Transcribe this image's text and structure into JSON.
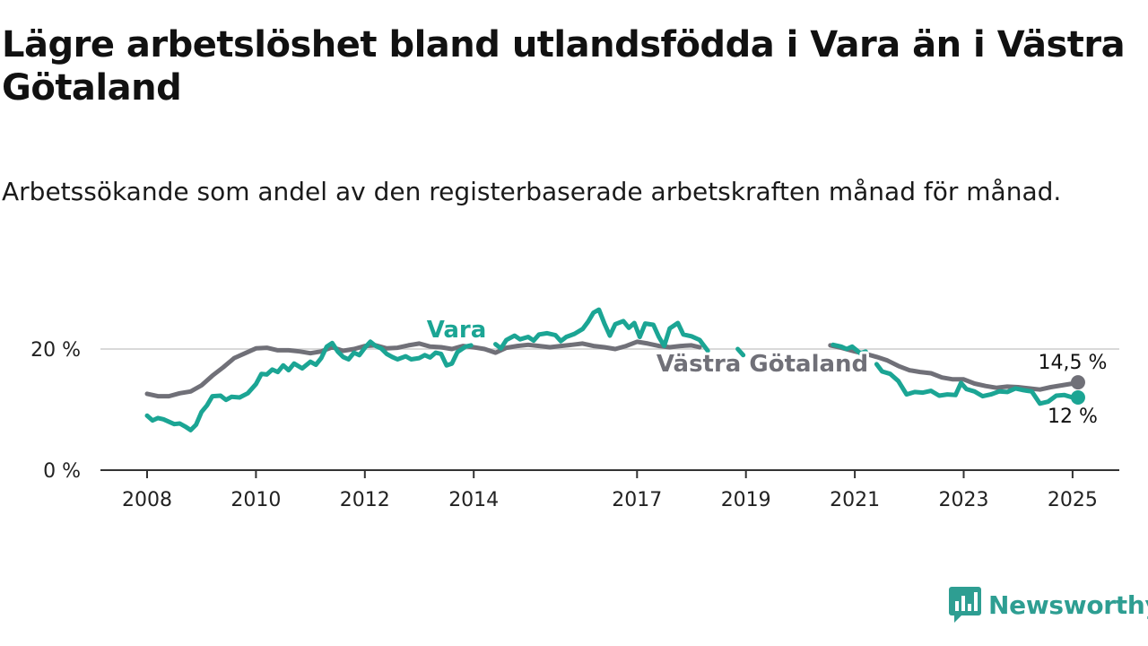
{
  "chart_data": {
    "type": "line",
    "title": "Lägre arbetslöshet bland utlandsfödda i Vara än i Västra Götaland",
    "subtitle": "Arbetssökande som andel av den registerbaserade arbetskraften månad för månad.",
    "ylim": [
      0,
      27
    ],
    "y_ticks": [
      {
        "value": 0,
        "label": "0 %"
      },
      {
        "value": 20,
        "label": "20 %"
      }
    ],
    "x_ticks": [
      {
        "value": 2008.0,
        "label": "2008"
      },
      {
        "value": 2010.0,
        "label": "2010"
      },
      {
        "value": 2012.0,
        "label": "2012"
      },
      {
        "value": 2014.0,
        "label": "2014"
      },
      {
        "value": 2017.0,
        "label": "2017"
      },
      {
        "value": 2019.0,
        "label": "2019"
      },
      {
        "value": 2021.0,
        "label": "2021"
      },
      {
        "value": 2023.0,
        "label": "2023"
      },
      {
        "value": 2025.0,
        "label": "2025"
      }
    ],
    "xlim": [
      2007.2,
      2026.0
    ],
    "grid": "horizontal at 20 %",
    "series": [
      {
        "name": "Vara",
        "color": "#1ba594",
        "end_label": "12 %",
        "points": [
          [
            2008.0,
            9.0
          ],
          [
            2008.1,
            8.2
          ],
          [
            2008.2,
            8.6
          ],
          [
            2008.3,
            8.4
          ],
          [
            2008.5,
            7.6
          ],
          [
            2008.6,
            7.7
          ],
          [
            2008.7,
            7.2
          ],
          [
            2008.8,
            6.6
          ],
          [
            2008.9,
            7.5
          ],
          [
            2009.0,
            9.6
          ],
          [
            2009.1,
            10.7
          ],
          [
            2009.2,
            12.2
          ],
          [
            2009.35,
            12.3
          ],
          [
            2009.45,
            11.6
          ],
          [
            2009.55,
            12.1
          ],
          [
            2009.7,
            12.0
          ],
          [
            2009.85,
            12.7
          ],
          [
            2010.0,
            14.2
          ],
          [
            2010.1,
            15.9
          ],
          [
            2010.2,
            15.8
          ],
          [
            2010.3,
            16.6
          ],
          [
            2010.4,
            16.2
          ],
          [
            2010.5,
            17.3
          ],
          [
            2010.6,
            16.5
          ],
          [
            2010.7,
            17.6
          ],
          [
            2010.85,
            16.8
          ],
          [
            2011.0,
            17.9
          ],
          [
            2011.1,
            17.4
          ],
          [
            2011.2,
            18.5
          ],
          [
            2011.3,
            20.4
          ],
          [
            2011.4,
            21.0
          ],
          [
            2011.5,
            19.6
          ],
          [
            2011.6,
            18.7
          ],
          [
            2011.7,
            18.3
          ],
          [
            2011.8,
            19.4
          ],
          [
            2011.9,
            19.0
          ],
          [
            2012.0,
            20.2
          ],
          [
            2012.1,
            21.2
          ],
          [
            2012.2,
            20.5
          ],
          [
            2012.3,
            20.1
          ],
          [
            2012.4,
            19.2
          ],
          [
            2012.5,
            18.7
          ],
          [
            2012.6,
            18.3
          ],
          [
            2012.75,
            18.8
          ],
          [
            2012.85,
            18.3
          ],
          [
            2013.0,
            18.5
          ],
          [
            2013.1,
            19.0
          ],
          [
            2013.2,
            18.6
          ],
          [
            2013.3,
            19.4
          ],
          [
            2013.4,
            19.2
          ],
          [
            2013.5,
            17.3
          ],
          [
            2013.6,
            17.6
          ],
          [
            2013.7,
            19.5
          ],
          [
            2013.85,
            20.4
          ],
          [
            2013.95,
            20.6
          ]
        ],
        "points_b": [
          [
            2014.4,
            20.8
          ],
          [
            2014.5,
            20.1
          ],
          [
            2014.6,
            21.5
          ],
          [
            2014.75,
            22.2
          ],
          [
            2014.85,
            21.6
          ],
          [
            2015.0,
            22.0
          ],
          [
            2015.1,
            21.4
          ],
          [
            2015.2,
            22.4
          ],
          [
            2015.35,
            22.6
          ],
          [
            2015.5,
            22.3
          ],
          [
            2015.6,
            21.3
          ],
          [
            2015.7,
            22.0
          ],
          [
            2015.85,
            22.5
          ],
          [
            2016.0,
            23.3
          ],
          [
            2016.1,
            24.5
          ],
          [
            2016.2,
            26.0
          ],
          [
            2016.3,
            26.5
          ],
          [
            2016.4,
            24.2
          ],
          [
            2016.5,
            22.2
          ],
          [
            2016.6,
            24.1
          ],
          [
            2016.75,
            24.6
          ],
          [
            2016.85,
            23.5
          ],
          [
            2016.95,
            24.3
          ],
          [
            2017.05,
            22.0
          ],
          [
            2017.15,
            24.2
          ],
          [
            2017.3,
            24.0
          ],
          [
            2017.4,
            22.0
          ],
          [
            2017.5,
            20.5
          ],
          [
            2017.6,
            23.4
          ],
          [
            2017.75,
            24.3
          ],
          [
            2017.85,
            22.4
          ],
          [
            2018.0,
            22.1
          ],
          [
            2018.15,
            21.5
          ],
          [
            2018.3,
            19.7
          ]
        ],
        "points_c": [
          [
            2018.85,
            20.0
          ],
          [
            2018.95,
            19.0
          ]
        ],
        "points_d": [
          [
            2020.6,
            20.7
          ],
          [
            2020.75,
            20.4
          ],
          [
            2020.85,
            20.0
          ],
          [
            2020.95,
            20.4
          ],
          [
            2021.1,
            19.3
          ],
          [
            2021.2,
            19.6
          ]
        ],
        "points_e": [
          [
            2021.4,
            17.5
          ],
          [
            2021.5,
            16.3
          ],
          [
            2021.65,
            15.9
          ],
          [
            2021.8,
            14.7
          ],
          [
            2021.95,
            12.5
          ],
          [
            2022.1,
            12.9
          ],
          [
            2022.25,
            12.8
          ],
          [
            2022.4,
            13.1
          ],
          [
            2022.55,
            12.3
          ],
          [
            2022.7,
            12.5
          ],
          [
            2022.85,
            12.4
          ],
          [
            2022.95,
            14.4
          ],
          [
            2023.05,
            13.4
          ],
          [
            2023.2,
            13.0
          ],
          [
            2023.35,
            12.2
          ],
          [
            2023.5,
            12.5
          ],
          [
            2023.65,
            13.0
          ],
          [
            2023.8,
            12.9
          ],
          [
            2023.95,
            13.5
          ],
          [
            2024.1,
            13.2
          ],
          [
            2024.25,
            13.0
          ],
          [
            2024.4,
            11.0
          ],
          [
            2024.55,
            11.3
          ],
          [
            2024.7,
            12.3
          ],
          [
            2024.85,
            12.4
          ],
          [
            2025.0,
            12.0
          ],
          [
            2025.1,
            12.0
          ]
        ]
      },
      {
        "name": "Västra Götaland",
        "color": "#707078",
        "end_label": "14,5 %",
        "points": [
          [
            2008.0,
            12.6
          ],
          [
            2008.2,
            12.2
          ],
          [
            2008.4,
            12.2
          ],
          [
            2008.6,
            12.7
          ],
          [
            2008.8,
            13.0
          ],
          [
            2009.0,
            14.0
          ],
          [
            2009.2,
            15.6
          ],
          [
            2009.4,
            17.0
          ],
          [
            2009.6,
            18.5
          ],
          [
            2009.8,
            19.3
          ],
          [
            2010.0,
            20.1
          ],
          [
            2010.2,
            20.2
          ],
          [
            2010.4,
            19.8
          ],
          [
            2010.6,
            19.8
          ],
          [
            2010.8,
            19.6
          ],
          [
            2011.0,
            19.3
          ],
          [
            2011.2,
            19.6
          ],
          [
            2011.4,
            20.3
          ],
          [
            2011.6,
            19.7
          ],
          [
            2011.8,
            20.0
          ],
          [
            2012.0,
            20.5
          ],
          [
            2012.2,
            20.6
          ],
          [
            2012.4,
            20.1
          ],
          [
            2012.6,
            20.2
          ],
          [
            2012.8,
            20.6
          ],
          [
            2013.0,
            20.9
          ],
          [
            2013.2,
            20.4
          ],
          [
            2013.4,
            20.3
          ],
          [
            2013.6,
            20.0
          ],
          [
            2013.8,
            20.5
          ],
          [
            2014.0,
            20.3
          ],
          [
            2014.2,
            20.0
          ],
          [
            2014.4,
            19.4
          ],
          [
            2014.6,
            20.2
          ],
          [
            2014.8,
            20.5
          ],
          [
            2015.0,
            20.7
          ],
          [
            2015.2,
            20.5
          ],
          [
            2015.4,
            20.3
          ],
          [
            2015.6,
            20.5
          ],
          [
            2015.8,
            20.7
          ],
          [
            2016.0,
            20.9
          ],
          [
            2016.2,
            20.5
          ],
          [
            2016.4,
            20.3
          ],
          [
            2016.6,
            20.0
          ],
          [
            2016.8,
            20.5
          ],
          [
            2017.0,
            21.2
          ],
          [
            2017.2,
            20.9
          ],
          [
            2017.4,
            20.5
          ],
          [
            2017.6,
            20.3
          ],
          [
            2017.8,
            20.5
          ],
          [
            2018.0,
            20.6
          ],
          [
            2018.15,
            20.3
          ]
        ],
        "points_b": [
          [
            2020.55,
            20.6
          ],
          [
            2020.75,
            20.2
          ],
          [
            2021.0,
            19.6
          ],
          [
            2021.2,
            19.2
          ],
          [
            2021.4,
            18.7
          ],
          [
            2021.6,
            18.1
          ],
          [
            2021.8,
            17.2
          ],
          [
            2022.0,
            16.5
          ],
          [
            2022.2,
            16.2
          ],
          [
            2022.4,
            16.0
          ],
          [
            2022.6,
            15.3
          ],
          [
            2022.8,
            15.0
          ],
          [
            2023.0,
            15.0
          ],
          [
            2023.2,
            14.3
          ],
          [
            2023.4,
            13.9
          ],
          [
            2023.6,
            13.6
          ],
          [
            2023.8,
            13.8
          ],
          [
            2024.0,
            13.7
          ],
          [
            2024.2,
            13.5
          ],
          [
            2024.4,
            13.3
          ],
          [
            2024.6,
            13.7
          ],
          [
            2024.8,
            14.0
          ],
          [
            2025.0,
            14.3
          ],
          [
            2025.1,
            14.5
          ]
        ]
      }
    ]
  },
  "brand": {
    "name": "Newsworthy",
    "color": "#2e9e92"
  }
}
